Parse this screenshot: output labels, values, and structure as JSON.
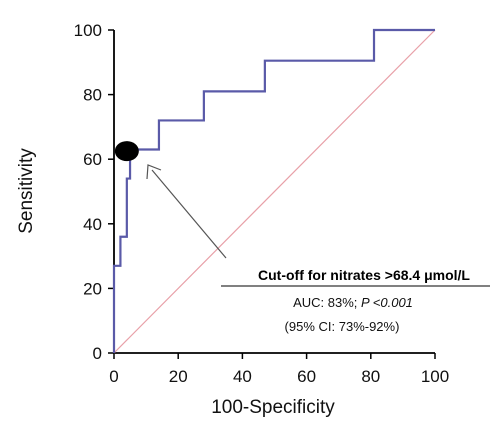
{
  "chart_data": {
    "type": "line",
    "xlabel": "100-Specificity",
    "ylabel": "Sensitivity",
    "xlim": [
      0,
      100
    ],
    "ylim": [
      0,
      100
    ],
    "x_ticks": [
      "0",
      "20",
      "40",
      "60",
      "80",
      "100"
    ],
    "y_ticks": [
      "0",
      "20",
      "40",
      "60",
      "80",
      "100"
    ],
    "grid": false,
    "series": [
      {
        "type": "step",
        "color": "#5a5aa8",
        "points": [
          [
            0,
            0
          ],
          [
            0,
            27
          ],
          [
            2,
            27
          ],
          [
            2,
            36
          ],
          [
            4,
            36
          ],
          [
            4,
            54
          ],
          [
            5,
            54
          ],
          [
            5,
            63
          ],
          [
            14,
            63
          ],
          [
            14,
            72
          ],
          [
            28,
            72
          ],
          [
            28,
            81
          ],
          [
            47,
            81
          ],
          [
            47,
            90.5
          ],
          [
            81,
            90.5
          ],
          [
            81,
            100
          ],
          [
            100,
            100
          ]
        ]
      },
      {
        "type": "diagonal",
        "color": "#e8a0a8",
        "points": [
          [
            0,
            0
          ],
          [
            100,
            100
          ]
        ]
      }
    ],
    "marker": {
      "x": 4,
      "y": 62.5,
      "color": "#000000"
    },
    "annotation": {
      "title": "Cut-off for nitrates >68.4 μmol/L",
      "auc_prefix": "AUC: 83%; ",
      "p_text": "P <0.001",
      "ci_text": "(95% CI: 73%-92%)"
    }
  }
}
